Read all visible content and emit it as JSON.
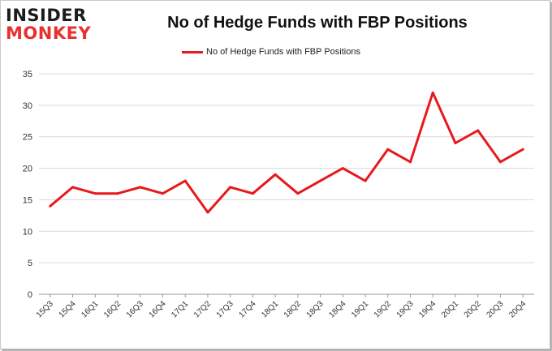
{
  "logo": {
    "line1": "INSIDER",
    "line2": "MONKEY"
  },
  "chart_data": {
    "type": "line",
    "title": "No of Hedge Funds with FBP Positions",
    "xlabel": "",
    "ylabel": "",
    "categories": [
      "15Q3",
      "15Q4",
      "16Q1",
      "16Q2",
      "16Q3",
      "16Q4",
      "17Q1",
      "17Q2",
      "17Q3",
      "17Q4",
      "18Q1",
      "18Q2",
      "18Q3",
      "18Q4",
      "19Q1",
      "19Q2",
      "19Q3",
      "19Q4",
      "20Q1",
      "20Q2",
      "20Q3",
      "20Q4"
    ],
    "series": [
      {
        "name": "No of Hedge Funds with FBP Positions",
        "values": [
          14,
          17,
          16,
          16,
          17,
          16,
          18,
          13,
          17,
          16,
          19,
          16,
          18,
          20,
          18,
          23,
          21,
          32,
          24,
          26,
          21,
          23
        ]
      }
    ],
    "ylim": [
      0,
      35
    ],
    "yticks": [
      0,
      5,
      10,
      15,
      20,
      25,
      30,
      35
    ],
    "grid": true,
    "legend_position": "top-center",
    "series_color": "#e8191c"
  }
}
